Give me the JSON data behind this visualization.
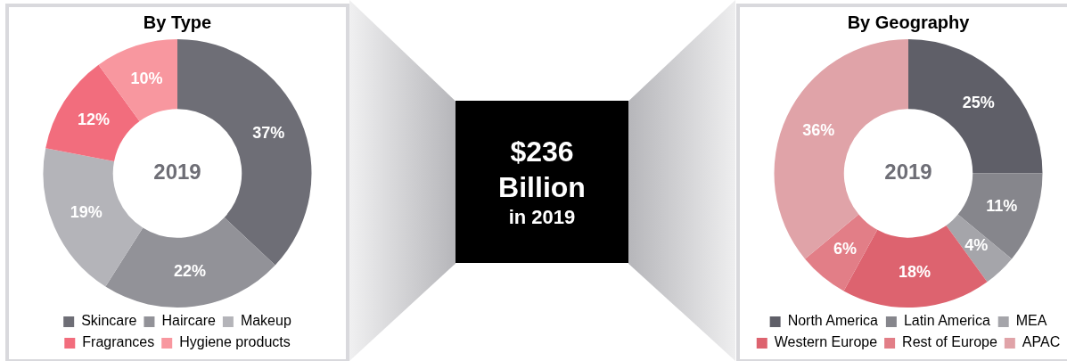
{
  "chart_data": [
    {
      "type": "donut",
      "title": "By Type",
      "categories": [
        "Skincare",
        "Haircare",
        "Makeup",
        "Fragrances",
        "Hygiene products"
      ],
      "values": [
        37,
        22,
        19,
        12,
        10
      ],
      "value_labels": [
        "37%",
        "22%",
        "19%",
        "12%",
        "10%"
      ],
      "colors": [
        "#6e6e76",
        "#929298",
        "#b4b4b9",
        "#f26d7d",
        "#f8979f"
      ],
      "legend": "bottom",
      "annotations": [
        "2019"
      ]
    },
    {
      "type": "other",
      "annotations": [
        "$236",
        "Billion",
        "in 2019"
      ]
    },
    {
      "type": "donut",
      "title": "By Geography",
      "categories": [
        "North America",
        "Latin America",
        "MEA",
        "Western Europe",
        "Rest of Europe",
        "APAC"
      ],
      "values": [
        25,
        11,
        4,
        18,
        6,
        36
      ],
      "value_labels": [
        "25%",
        "11%",
        "4%",
        "18%",
        "6%",
        "36%"
      ],
      "colors": [
        "#5f5f68",
        "#86868c",
        "#a5a5aa",
        "#dd636f",
        "#e27e87",
        "#e0a3a8"
      ],
      "legend": "bottom",
      "annotations": [
        "2019"
      ]
    }
  ]
}
